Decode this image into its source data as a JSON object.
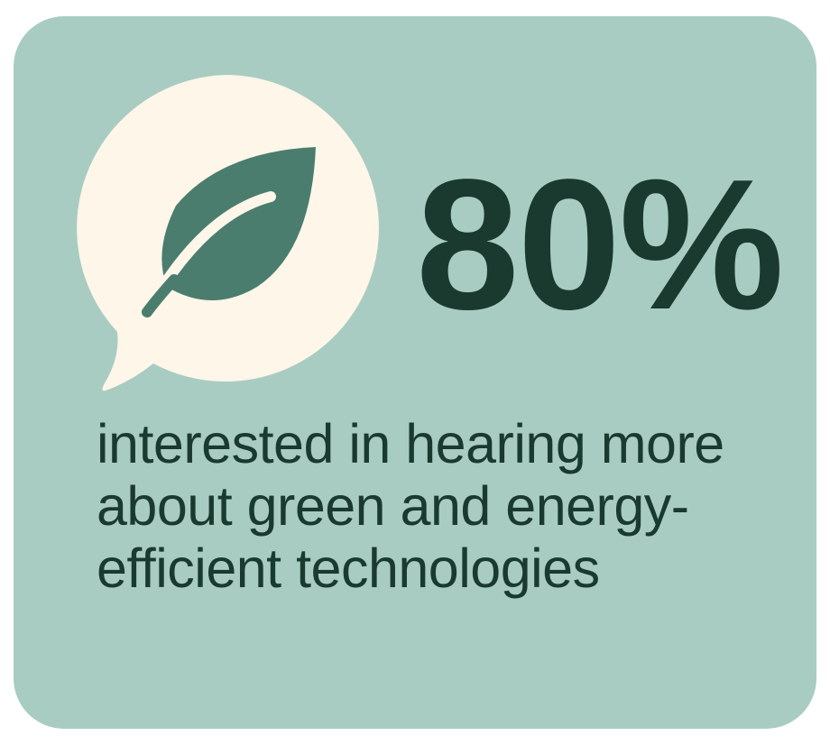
{
  "stat": {
    "value": "80%",
    "description": "interested in hearing more about green and energy-efficient technologies"
  },
  "icon": "leaf-in-speech-bubble-icon",
  "colors": {
    "card_background": "#a9ccc2",
    "bubble": "#fdf6e9",
    "leaf": "#4a7d6e",
    "text": "#1b3a2f"
  }
}
